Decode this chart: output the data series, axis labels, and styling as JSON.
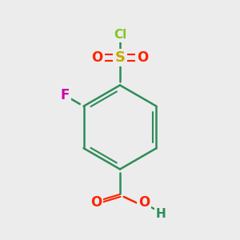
{
  "bg_color": "#ececec",
  "bond_color": "#2d8c5a",
  "bond_width": 1.8,
  "colors": {
    "Cl": "#7ec820",
    "S": "#c8a800",
    "O": "#ff2200",
    "F": "#cc00aa",
    "bond": "#2d8c5a",
    "H": "#2d8c5a"
  },
  "fs": 11
}
